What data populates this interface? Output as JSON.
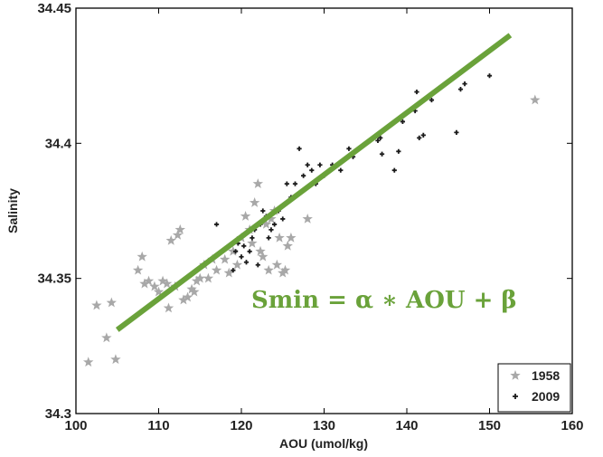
{
  "chart_data": {
    "type": "scatter",
    "title": "",
    "xlabel": "AOU (umol/kg)",
    "ylabel": "Salinity",
    "xlim": [
      100,
      160
    ],
    "ylim": [
      34.3,
      34.45
    ],
    "x_ticks": [
      100,
      110,
      120,
      130,
      140,
      150,
      160
    ],
    "y_ticks": [
      34.3,
      34.35,
      34.4,
      34.45
    ],
    "x_tick_labels": [
      "100",
      "110",
      "120",
      "130",
      "140",
      "150",
      "160"
    ],
    "y_tick_labels": [
      "34.3",
      "34.35",
      "34.4",
      "34.45"
    ],
    "grid": false,
    "legend_position": "bottom-right",
    "series": [
      {
        "name": "1958",
        "marker": "star",
        "color": "#a8a8a8",
        "points": [
          [
            101.5,
            34.319
          ],
          [
            102.5,
            34.34
          ],
          [
            103.7,
            34.328
          ],
          [
            104.3,
            34.341
          ],
          [
            104.8,
            34.32
          ],
          [
            107.5,
            34.353
          ],
          [
            108,
            34.358
          ],
          [
            108.3,
            34.348
          ],
          [
            108.8,
            34.349
          ],
          [
            109.5,
            34.347
          ],
          [
            110,
            34.345
          ],
          [
            110.5,
            34.349
          ],
          [
            111,
            34.348
          ],
          [
            111.2,
            34.339
          ],
          [
            111.5,
            34.364
          ],
          [
            112,
            34.347
          ],
          [
            112.3,
            34.366
          ],
          [
            112.6,
            34.368
          ],
          [
            113,
            34.342
          ],
          [
            113.5,
            34.343
          ],
          [
            114,
            34.346
          ],
          [
            114.3,
            34.345
          ],
          [
            114.6,
            34.349
          ],
          [
            115,
            34.35
          ],
          [
            115.5,
            34.355
          ],
          [
            116,
            34.35
          ],
          [
            116.5,
            34.357
          ],
          [
            117,
            34.353
          ],
          [
            118,
            34.357
          ],
          [
            118.5,
            34.352
          ],
          [
            119,
            34.36
          ],
          [
            119.5,
            34.355
          ],
          [
            120,
            34.365
          ],
          [
            120.5,
            34.373
          ],
          [
            121,
            34.368
          ],
          [
            121.3,
            34.363
          ],
          [
            121.6,
            34.378
          ],
          [
            122,
            34.385
          ],
          [
            122.3,
            34.36
          ],
          [
            122.6,
            34.358
          ],
          [
            123,
            34.37
          ],
          [
            123.3,
            34.353
          ],
          [
            123.6,
            34.372
          ],
          [
            124,
            34.375
          ],
          [
            124.3,
            34.355
          ],
          [
            124.6,
            34.365
          ],
          [
            125,
            34.352
          ],
          [
            125.3,
            34.353
          ],
          [
            125.6,
            34.362
          ],
          [
            126,
            34.365
          ],
          [
            128,
            34.372
          ],
          [
            155.5,
            34.416
          ]
        ]
      },
      {
        "name": "2009",
        "marker": "plus",
        "color": "#1a1a1a",
        "points": [
          [
            117,
            34.37
          ],
          [
            119,
            34.353
          ],
          [
            119.3,
            34.36
          ],
          [
            119.6,
            34.363
          ],
          [
            120,
            34.358
          ],
          [
            120.3,
            34.362
          ],
          [
            120.6,
            34.356
          ],
          [
            121,
            34.36
          ],
          [
            121.3,
            34.365
          ],
          [
            121.6,
            34.368
          ],
          [
            122,
            34.355
          ],
          [
            122.3,
            34.37
          ],
          [
            122.6,
            34.375
          ],
          [
            123,
            34.373
          ],
          [
            123.3,
            34.365
          ],
          [
            123.6,
            34.368
          ],
          [
            124,
            34.37
          ],
          [
            124.5,
            34.375
          ],
          [
            125,
            34.372
          ],
          [
            125.5,
            34.385
          ],
          [
            126,
            34.38
          ],
          [
            126.5,
            34.385
          ],
          [
            127,
            34.398
          ],
          [
            127.5,
            34.388
          ],
          [
            128,
            34.392
          ],
          [
            128.5,
            34.39
          ],
          [
            129,
            34.385
          ],
          [
            129.5,
            34.392
          ],
          [
            130,
            34.388
          ],
          [
            131,
            34.392
          ],
          [
            132,
            34.39
          ],
          [
            133,
            34.398
          ],
          [
            133.5,
            34.395
          ],
          [
            136.5,
            34.401
          ],
          [
            136.8,
            34.402
          ],
          [
            137,
            34.396
          ],
          [
            138.5,
            34.39
          ],
          [
            139,
            34.397
          ],
          [
            139.5,
            34.408
          ],
          [
            141,
            34.412
          ],
          [
            141.5,
            34.402
          ],
          [
            142,
            34.403
          ],
          [
            141.2,
            34.419
          ],
          [
            143,
            34.416
          ],
          [
            146,
            34.404
          ],
          [
            146.5,
            34.42
          ],
          [
            147,
            34.422
          ],
          [
            150,
            34.425
          ]
        ]
      }
    ],
    "fit_line": {
      "x": [
        105,
        152.5
      ],
      "y": [
        34.331,
        34.44
      ],
      "color": "#6aa23a",
      "label": "Smin =  α ∗ AOU  +  β"
    }
  }
}
